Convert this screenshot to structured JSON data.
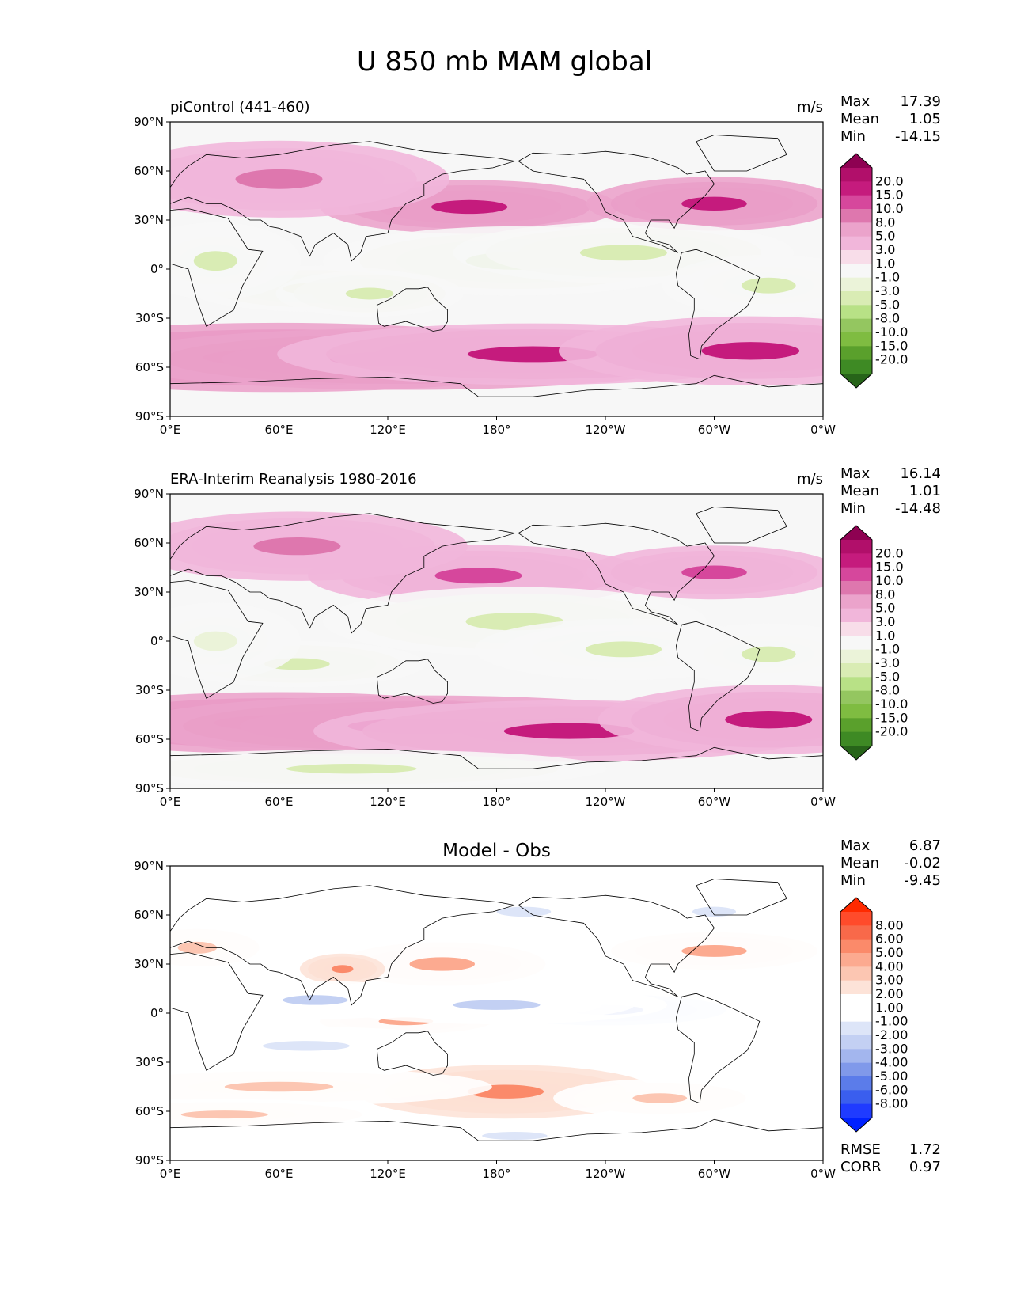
{
  "title": "U 850 mb MAM global",
  "chart_data": [
    {
      "type": "heatmap",
      "variant": "filled contour map",
      "title_left": "piControl (441-460)",
      "title_center": "",
      "units": "m/s",
      "stats": [
        {
          "label": "Max",
          "value": "17.39"
        },
        {
          "label": "Mean",
          "value": "1.05"
        },
        {
          "label": "Min",
          "value": "-14.15"
        }
      ],
      "footer_stats": [],
      "x_ticks": [
        "0°E",
        "60°E",
        "120°E",
        "180°",
        "120°W",
        "60°W",
        "0°W"
      ],
      "y_ticks": [
        "90°N",
        "60°N",
        "30°N",
        "0°",
        "30°S",
        "60°S",
        "90°S"
      ],
      "xlim": [
        0,
        360
      ],
      "ylim": [
        -90,
        90
      ],
      "levels": [
        "20.0",
        "15.0",
        "10.0",
        "8.0",
        "5.0",
        "3.0",
        "1.0",
        "-1.0",
        "-3.0",
        "-5.0",
        "-8.0",
        "-10.0",
        "-15.0",
        "-20.0"
      ],
      "colors": [
        "#8e0152",
        "#b10f6a",
        "#c51b7d",
        "#d6479c",
        "#de77ae",
        "#eba3cb",
        "#f1b6da",
        "#f8dde9",
        "#f7f7f7",
        "#ebf3d9",
        "#d9ecb4",
        "#b8e186",
        "#94c660",
        "#7fbc41",
        "#5aa02c",
        "#3e8a24",
        "#276419"
      ],
      "features": [
        {
          "lon": 60,
          "lat": -54,
          "value": 16,
          "w": 70,
          "h": 9
        },
        {
          "lon": 130,
          "lat": -55,
          "value": 14,
          "w": 70,
          "h": 8
        },
        {
          "lon": 200,
          "lat": -52,
          "value": 11,
          "w": 60,
          "h": 8
        },
        {
          "lon": 320,
          "lat": -50,
          "value": 11,
          "w": 45,
          "h": 9
        },
        {
          "lon": 165,
          "lat": 38,
          "value": 12,
          "w": 35,
          "h": 7
        },
        {
          "lon": 300,
          "lat": 40,
          "value": 12,
          "w": 30,
          "h": 7
        },
        {
          "lon": 60,
          "lat": 55,
          "value": 5,
          "w": 40,
          "h": 10
        },
        {
          "lon": 190,
          "lat": 5,
          "value": -10,
          "w": 45,
          "h": 9
        },
        {
          "lon": 250,
          "lat": 10,
          "value": -8,
          "w": 40,
          "h": 8
        },
        {
          "lon": 80,
          "lat": -12,
          "value": -7,
          "w": 30,
          "h": 6
        },
        {
          "lon": 110,
          "lat": -15,
          "value": -7,
          "w": 22,
          "h": 6
        },
        {
          "lon": 25,
          "lat": 5,
          "value": -6,
          "w": 20,
          "h": 10
        },
        {
          "lon": 330,
          "lat": -10,
          "value": -6,
          "w": 25,
          "h": 8
        }
      ]
    },
    {
      "type": "heatmap",
      "variant": "filled contour map",
      "title_left": "ERA-Interim Reanalysis 1980-2016",
      "title_center": "",
      "units": "m/s",
      "stats": [
        {
          "label": "Max",
          "value": "16.14"
        },
        {
          "label": "Mean",
          "value": "1.01"
        },
        {
          "label": "Min",
          "value": "-14.48"
        }
      ],
      "footer_stats": [],
      "x_ticks": [
        "0°E",
        "60°E",
        "120°E",
        "180°",
        "120°W",
        "60°W",
        "0°W"
      ],
      "y_ticks": [
        "90°N",
        "60°N",
        "30°N",
        "0°",
        "30°S",
        "60°S",
        "90°S"
      ],
      "xlim": [
        0,
        360
      ],
      "ylim": [
        -90,
        90
      ],
      "levels": [
        "20.0",
        "15.0",
        "10.0",
        "8.0",
        "5.0",
        "3.0",
        "1.0",
        "-1.0",
        "-3.0",
        "-5.0",
        "-8.0",
        "-10.0",
        "-15.0",
        "-20.0"
      ],
      "colors": [
        "#8e0152",
        "#b10f6a",
        "#c51b7d",
        "#d6479c",
        "#de77ae",
        "#eba3cb",
        "#f1b6da",
        "#f8dde9",
        "#f7f7f7",
        "#ebf3d9",
        "#d9ecb4",
        "#b8e186",
        "#94c660",
        "#7fbc41",
        "#5aa02c",
        "#3e8a24",
        "#276419"
      ],
      "features": [
        {
          "lon": 60,
          "lat": -50,
          "value": 16,
          "w": 60,
          "h": 8
        },
        {
          "lon": 140,
          "lat": -52,
          "value": 13,
          "w": 70,
          "h": 8
        },
        {
          "lon": 220,
          "lat": -55,
          "value": 10,
          "w": 60,
          "h": 8
        },
        {
          "lon": 330,
          "lat": -48,
          "value": 11,
          "w": 40,
          "h": 9
        },
        {
          "lon": 170,
          "lat": 40,
          "value": 8,
          "w": 40,
          "h": 8
        },
        {
          "lon": 300,
          "lat": 42,
          "value": 8,
          "w": 30,
          "h": 7
        },
        {
          "lon": 70,
          "lat": 58,
          "value": 5,
          "w": 40,
          "h": 9
        },
        {
          "lon": 190,
          "lat": 12,
          "value": -7,
          "w": 45,
          "h": 9
        },
        {
          "lon": 250,
          "lat": -5,
          "value": -6,
          "w": 35,
          "h": 8
        },
        {
          "lon": 70,
          "lat": -14,
          "value": -7,
          "w": 30,
          "h": 6
        },
        {
          "lon": 25,
          "lat": 0,
          "value": -5,
          "w": 20,
          "h": 10
        },
        {
          "lon": 330,
          "lat": -8,
          "value": -6,
          "w": 25,
          "h": 8
        },
        {
          "lon": 100,
          "lat": -78,
          "value": -8,
          "w": 60,
          "h": 5
        }
      ]
    },
    {
      "type": "heatmap",
      "variant": "filled contour map",
      "title_left": "",
      "title_center": "Model - Obs",
      "units": "",
      "stats": [
        {
          "label": "Max",
          "value": "6.87"
        },
        {
          "label": "Mean",
          "value": "-0.02"
        },
        {
          "label": "Min",
          "value": "-9.45"
        }
      ],
      "footer_stats": [
        {
          "label": "RMSE",
          "value": "1.72"
        },
        {
          "label": "CORR",
          "value": "0.97"
        }
      ],
      "x_ticks": [
        "0°E",
        "60°E",
        "120°E",
        "180°",
        "120°W",
        "60°W",
        "0°W"
      ],
      "y_ticks": [
        "90°N",
        "60°N",
        "30°N",
        "0°",
        "30°S",
        "60°S",
        "90°S"
      ],
      "xlim": [
        0,
        360
      ],
      "ylim": [
        -90,
        90
      ],
      "levels": [
        "8.00",
        "6.00",
        "5.00",
        "4.00",
        "3.00",
        "2.00",
        "1.00",
        "-1.00",
        "-2.00",
        "-3.00",
        "-4.00",
        "-5.00",
        "-6.00",
        "-8.00"
      ],
      "colors": [
        "#ff2a00",
        "#ff4b2b",
        "#f8694a",
        "#fb8a6a",
        "#fcaa90",
        "#fcc6b2",
        "#fde3d8",
        "#ffffff",
        "#ffffff",
        "#dde5f8",
        "#c3d0f3",
        "#a3b6ee",
        "#8099ea",
        "#5b7cea",
        "#3a5eee",
        "#1f3bff",
        "#0021ff"
      ],
      "features": [
        {
          "lon": 185,
          "lat": -48,
          "value": 4.5,
          "w": 35,
          "h": 7
        },
        {
          "lon": 270,
          "lat": -52,
          "value": 2.5,
          "w": 25,
          "h": 5
        },
        {
          "lon": 60,
          "lat": -45,
          "value": 2.5,
          "w": 50,
          "h": 5
        },
        {
          "lon": 30,
          "lat": -62,
          "value": 2.5,
          "w": 40,
          "h": 4
        },
        {
          "lon": 300,
          "lat": 38,
          "value": 3.5,
          "w": 30,
          "h": 6
        },
        {
          "lon": 150,
          "lat": 30,
          "value": 3,
          "w": 30,
          "h": 7
        },
        {
          "lon": 95,
          "lat": 27,
          "value": 4,
          "w": 10,
          "h": 4
        },
        {
          "lon": 130,
          "lat": -5,
          "value": 3,
          "w": 25,
          "h": 4
        },
        {
          "lon": 15,
          "lat": 40,
          "value": 2.5,
          "w": 18,
          "h": 6
        },
        {
          "lon": 240,
          "lat": 2,
          "value": -5.5,
          "w": 35,
          "h": 5
        },
        {
          "lon": 180,
          "lat": 5,
          "value": -4,
          "w": 40,
          "h": 5
        },
        {
          "lon": 80,
          "lat": 8,
          "value": -4,
          "w": 30,
          "h": 5
        },
        {
          "lon": 195,
          "lat": 62,
          "value": -3,
          "w": 25,
          "h": 5
        },
        {
          "lon": 300,
          "lat": 62,
          "value": -3,
          "w": 20,
          "h": 5
        },
        {
          "lon": 75,
          "lat": -20,
          "value": -2.5,
          "w": 40,
          "h": 5
        },
        {
          "lon": 190,
          "lat": -75,
          "value": -2.5,
          "w": 30,
          "h": 4
        }
      ]
    }
  ]
}
